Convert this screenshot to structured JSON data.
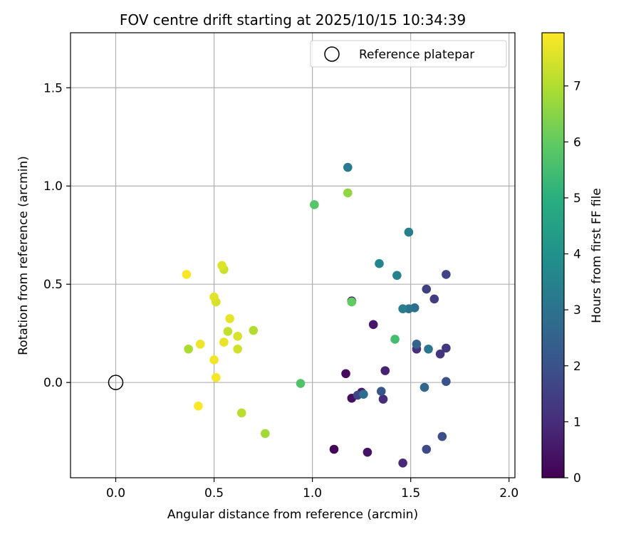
{
  "chart_data": {
    "type": "scatter",
    "title": "FOV centre drift starting at 2025/10/15 10:34:39",
    "xlabel": "Angular distance from reference (arcmin)",
    "ylabel": "Rotation from reference (arcmin)",
    "xlim": [
      -0.23,
      2.03
    ],
    "ylim": [
      -0.485,
      1.78
    ],
    "xticks": [
      0.0,
      0.5,
      1.0,
      1.5,
      2.0
    ],
    "xtick_labels": [
      "0.0",
      "0.5",
      "1.0",
      "1.5",
      "2.0"
    ],
    "yticks": [
      0.0,
      0.5,
      1.0,
      1.5
    ],
    "ytick_labels": [
      "0.0",
      "0.5",
      "1.0",
      "1.5"
    ],
    "grid": true,
    "legend": {
      "position": "top-right",
      "entries": [
        "Reference platepar"
      ]
    },
    "reference_point": {
      "x": 0.0,
      "y": 0.0,
      "label": "Reference platepar"
    },
    "colorbar": {
      "label": "Hours from first FF file",
      "min": 0,
      "max": 7.95,
      "colormap": "viridis",
      "ticks": [
        0,
        1,
        2,
        3,
        4,
        5,
        6,
        7
      ],
      "tick_labels": [
        "0",
        "1",
        "2",
        "3",
        "4",
        "5",
        "6",
        "7"
      ]
    },
    "points": [
      {
        "x": 1.11,
        "y": -0.34,
        "hours": 0.1
      },
      {
        "x": 1.17,
        "y": 0.045,
        "hours": 0.2
      },
      {
        "x": 1.2,
        "y": -0.08,
        "hours": 0.3
      },
      {
        "x": 1.28,
        "y": -0.355,
        "hours": 0.4
      },
      {
        "x": 1.31,
        "y": 0.295,
        "hours": 0.5
      },
      {
        "x": 1.25,
        "y": -0.05,
        "hours": 0.6
      },
      {
        "x": 1.2,
        "y": 0.415,
        "hours": 0.7
      },
      {
        "x": 1.37,
        "y": 0.06,
        "hours": 0.8
      },
      {
        "x": 1.46,
        "y": -0.41,
        "hours": 0.9
      },
      {
        "x": 1.36,
        "y": -0.085,
        "hours": 1.0
      },
      {
        "x": 1.53,
        "y": 0.17,
        "hours": 1.1
      },
      {
        "x": 1.65,
        "y": 0.145,
        "hours": 1.2
      },
      {
        "x": 1.68,
        "y": 0.175,
        "hours": 1.3
      },
      {
        "x": 1.62,
        "y": 0.425,
        "hours": 1.4
      },
      {
        "x": 1.58,
        "y": 0.475,
        "hours": 1.5
      },
      {
        "x": 1.68,
        "y": 0.55,
        "hours": 1.6
      },
      {
        "x": 1.23,
        "y": -0.065,
        "hours": 1.7
      },
      {
        "x": 1.58,
        "y": -0.34,
        "hours": 1.8
      },
      {
        "x": 1.66,
        "y": -0.275,
        "hours": 1.9
      },
      {
        "x": 1.68,
        "y": 0.005,
        "hours": 2.0
      },
      {
        "x": 1.35,
        "y": -0.045,
        "hours": 2.1
      },
      {
        "x": 1.53,
        "y": 0.195,
        "hours": 2.5
      },
      {
        "x": 1.57,
        "y": -0.025,
        "hours": 2.6
      },
      {
        "x": 1.26,
        "y": -0.06,
        "hours": 2.8
      },
      {
        "x": 1.52,
        "y": 0.38,
        "hours": 2.9
      },
      {
        "x": 1.49,
        "y": 0.375,
        "hours": 3.0
      },
      {
        "x": 1.59,
        "y": 0.17,
        "hours": 3.1
      },
      {
        "x": 1.18,
        "y": 1.095,
        "hours": 3.2
      },
      {
        "x": 1.46,
        "y": 0.375,
        "hours": 3.3
      },
      {
        "x": 1.49,
        "y": 0.765,
        "hours": 3.4
      },
      {
        "x": 1.43,
        "y": 0.545,
        "hours": 3.5
      },
      {
        "x": 1.34,
        "y": 0.605,
        "hours": 3.6
      },
      {
        "x": 1.42,
        "y": 0.22,
        "hours": 5.5
      },
      {
        "x": 0.94,
        "y": -0.005,
        "hours": 5.7
      },
      {
        "x": 1.01,
        "y": 0.905,
        "hours": 5.8
      },
      {
        "x": 1.2,
        "y": 0.41,
        "hours": 6.0
      },
      {
        "x": 1.18,
        "y": 0.965,
        "hours": 6.6
      },
      {
        "x": 0.76,
        "y": -0.26,
        "hours": 6.8
      },
      {
        "x": 0.37,
        "y": 0.17,
        "hours": 6.9
      },
      {
        "x": 0.7,
        "y": 0.265,
        "hours": 7.0
      },
      {
        "x": 0.64,
        "y": -0.155,
        "hours": 7.1
      },
      {
        "x": 0.57,
        "y": 0.26,
        "hours": 7.2
      },
      {
        "x": 0.55,
        "y": 0.575,
        "hours": 7.3
      },
      {
        "x": 0.62,
        "y": 0.17,
        "hours": 7.4
      },
      {
        "x": 0.51,
        "y": 0.41,
        "hours": 7.45
      },
      {
        "x": 0.62,
        "y": 0.235,
        "hours": 7.5
      },
      {
        "x": 0.54,
        "y": 0.595,
        "hours": 7.55
      },
      {
        "x": 0.5,
        "y": 0.435,
        "hours": 7.6
      },
      {
        "x": 0.58,
        "y": 0.325,
        "hours": 7.65
      },
      {
        "x": 0.55,
        "y": 0.205,
        "hours": 7.7
      },
      {
        "x": 0.43,
        "y": 0.195,
        "hours": 7.75
      },
      {
        "x": 0.5,
        "y": 0.115,
        "hours": 7.8
      },
      {
        "x": 0.51,
        "y": 0.025,
        "hours": 7.85
      },
      {
        "x": 0.36,
        "y": 0.55,
        "hours": 7.9
      },
      {
        "x": 0.42,
        "y": -0.12,
        "hours": 7.93
      }
    ]
  }
}
